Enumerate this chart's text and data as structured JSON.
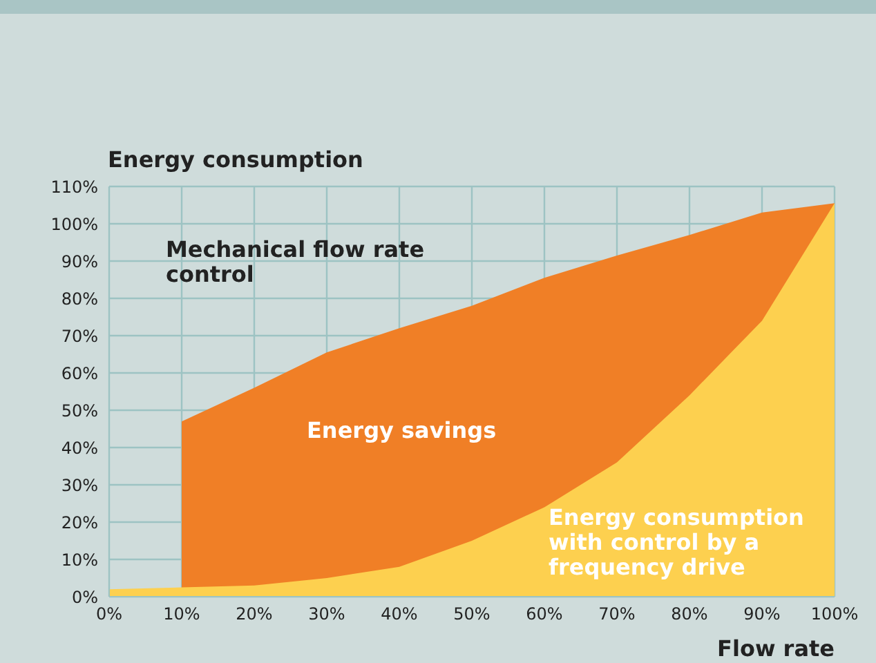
{
  "chart_data": {
    "type": "area",
    "xlabel": "Flow rate",
    "ylabel": "Energy consumption",
    "x": [
      0,
      10,
      20,
      30,
      40,
      50,
      60,
      70,
      80,
      90,
      100
    ],
    "series": [
      {
        "name": "Mechanical flow rate control",
        "color": "#f07f26",
        "values": [
          null,
          47,
          56,
          65.5,
          72,
          78,
          85.5,
          91.5,
          97,
          103,
          105.5
        ]
      },
      {
        "name": "Energy consumption with control by a frequency drive",
        "color": "#fdd04f",
        "values": [
          2,
          2.5,
          3,
          5,
          8,
          15,
          24,
          36,
          54,
          74,
          105.5
        ]
      }
    ],
    "annotations": [
      "Energy savings"
    ],
    "xlim": [
      0,
      100
    ],
    "xticks": [
      {
        "value": 0,
        "label": "0%"
      },
      {
        "value": 10,
        "label": "10%"
      },
      {
        "value": 20,
        "label": "20%"
      },
      {
        "value": 30,
        "label": "30%"
      },
      {
        "value": 40,
        "label": "40%"
      },
      {
        "value": 50,
        "label": "50%"
      },
      {
        "value": 60,
        "label": "60%"
      },
      {
        "value": 70,
        "label": "70%"
      },
      {
        "value": 80,
        "label": "80%"
      },
      {
        "value": 90,
        "label": "90%"
      },
      {
        "value": 100,
        "label": "100%"
      }
    ],
    "ylim": [
      0,
      110
    ],
    "yticks": [
      {
        "value": 0,
        "label": "0%"
      },
      {
        "value": 10,
        "label": "10%"
      },
      {
        "value": 20,
        "label": "20%"
      },
      {
        "value": 30,
        "label": "30%"
      },
      {
        "value": 40,
        "label": "40%"
      },
      {
        "value": 50,
        "label": "50%"
      },
      {
        "value": 60,
        "label": "60%"
      },
      {
        "value": 70,
        "label": "70%"
      },
      {
        "value": 80,
        "label": "80%"
      },
      {
        "value": 90,
        "label": "90%"
      },
      {
        "value": 100,
        "label": "100%"
      },
      {
        "value": 110,
        "label": "110%"
      }
    ],
    "grid": true
  }
}
